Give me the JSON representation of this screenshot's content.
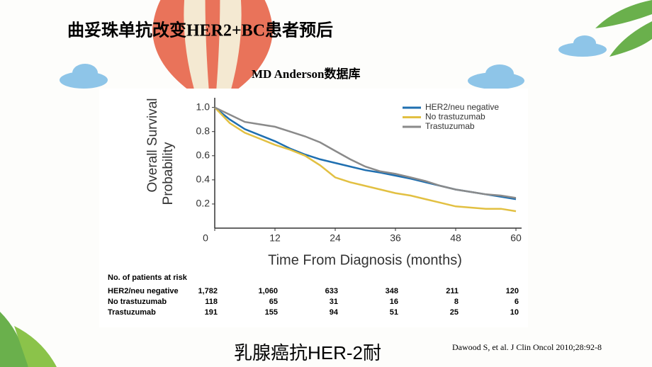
{
  "slide": {
    "title": "曲妥珠单抗改变HER2+BC患者预后",
    "subtitle": "MD Anderson数据库",
    "bottom_text": "乳腺癌抗HER-2耐",
    "citation": "Dawood S, et al. J Clin Oncol 2010;28:92-8"
  },
  "chart_data": {
    "type": "line",
    "y_label": [
      "Overall Survival",
      "Probability"
    ],
    "x_label": "Time From Diagnosis (months)",
    "x": [
      0,
      3,
      6,
      9,
      12,
      15,
      18,
      21,
      24,
      27,
      30,
      33,
      36,
      39,
      42,
      45,
      48,
      51,
      54,
      57,
      60
    ],
    "series": [
      {
        "name": "HER2/neu negative",
        "color": "#1f6fb0",
        "values": [
          1.0,
          0.9,
          0.82,
          0.77,
          0.72,
          0.66,
          0.61,
          0.57,
          0.54,
          0.51,
          0.48,
          0.46,
          0.435,
          0.41,
          0.38,
          0.35,
          0.32,
          0.3,
          0.28,
          0.26,
          0.24
        ]
      },
      {
        "name": "No trastuzumab",
        "color": "#e2c042",
        "values": [
          1.0,
          0.87,
          0.79,
          0.74,
          0.69,
          0.65,
          0.6,
          0.52,
          0.42,
          0.38,
          0.35,
          0.32,
          0.29,
          0.27,
          0.24,
          0.21,
          0.18,
          0.17,
          0.16,
          0.16,
          0.14
        ]
      },
      {
        "name": "Trastuzumab",
        "color": "#8a8a8a",
        "values": [
          1.0,
          0.94,
          0.88,
          0.86,
          0.84,
          0.8,
          0.76,
          0.71,
          0.64,
          0.57,
          0.51,
          0.47,
          0.45,
          0.42,
          0.39,
          0.35,
          0.32,
          0.3,
          0.28,
          0.27,
          0.25
        ]
      }
    ],
    "xlim": [
      0,
      60
    ],
    "xticks": [
      0,
      12,
      24,
      36,
      48,
      60
    ],
    "ylim": [
      0,
      1.08
    ],
    "yticks": [
      0.2,
      0.4,
      0.6,
      0.8,
      {
        "value": 1,
        "label": "1.0"
      }
    ],
    "legend": "top-right"
  },
  "risk_table": {
    "title": "No. of patients at risk",
    "rows": [
      {
        "label": "HER2/neu negative",
        "counts": [
          "1,782",
          "1,060",
          "633",
          "348",
          "211",
          "120"
        ]
      },
      {
        "label": "No trastuzumab",
        "counts": [
          "118",
          "65",
          "31",
          "16",
          "8",
          "6"
        ]
      },
      {
        "label": "Trastuzumab",
        "counts": [
          "191",
          "155",
          "94",
          "51",
          "25",
          "10"
        ]
      }
    ]
  }
}
